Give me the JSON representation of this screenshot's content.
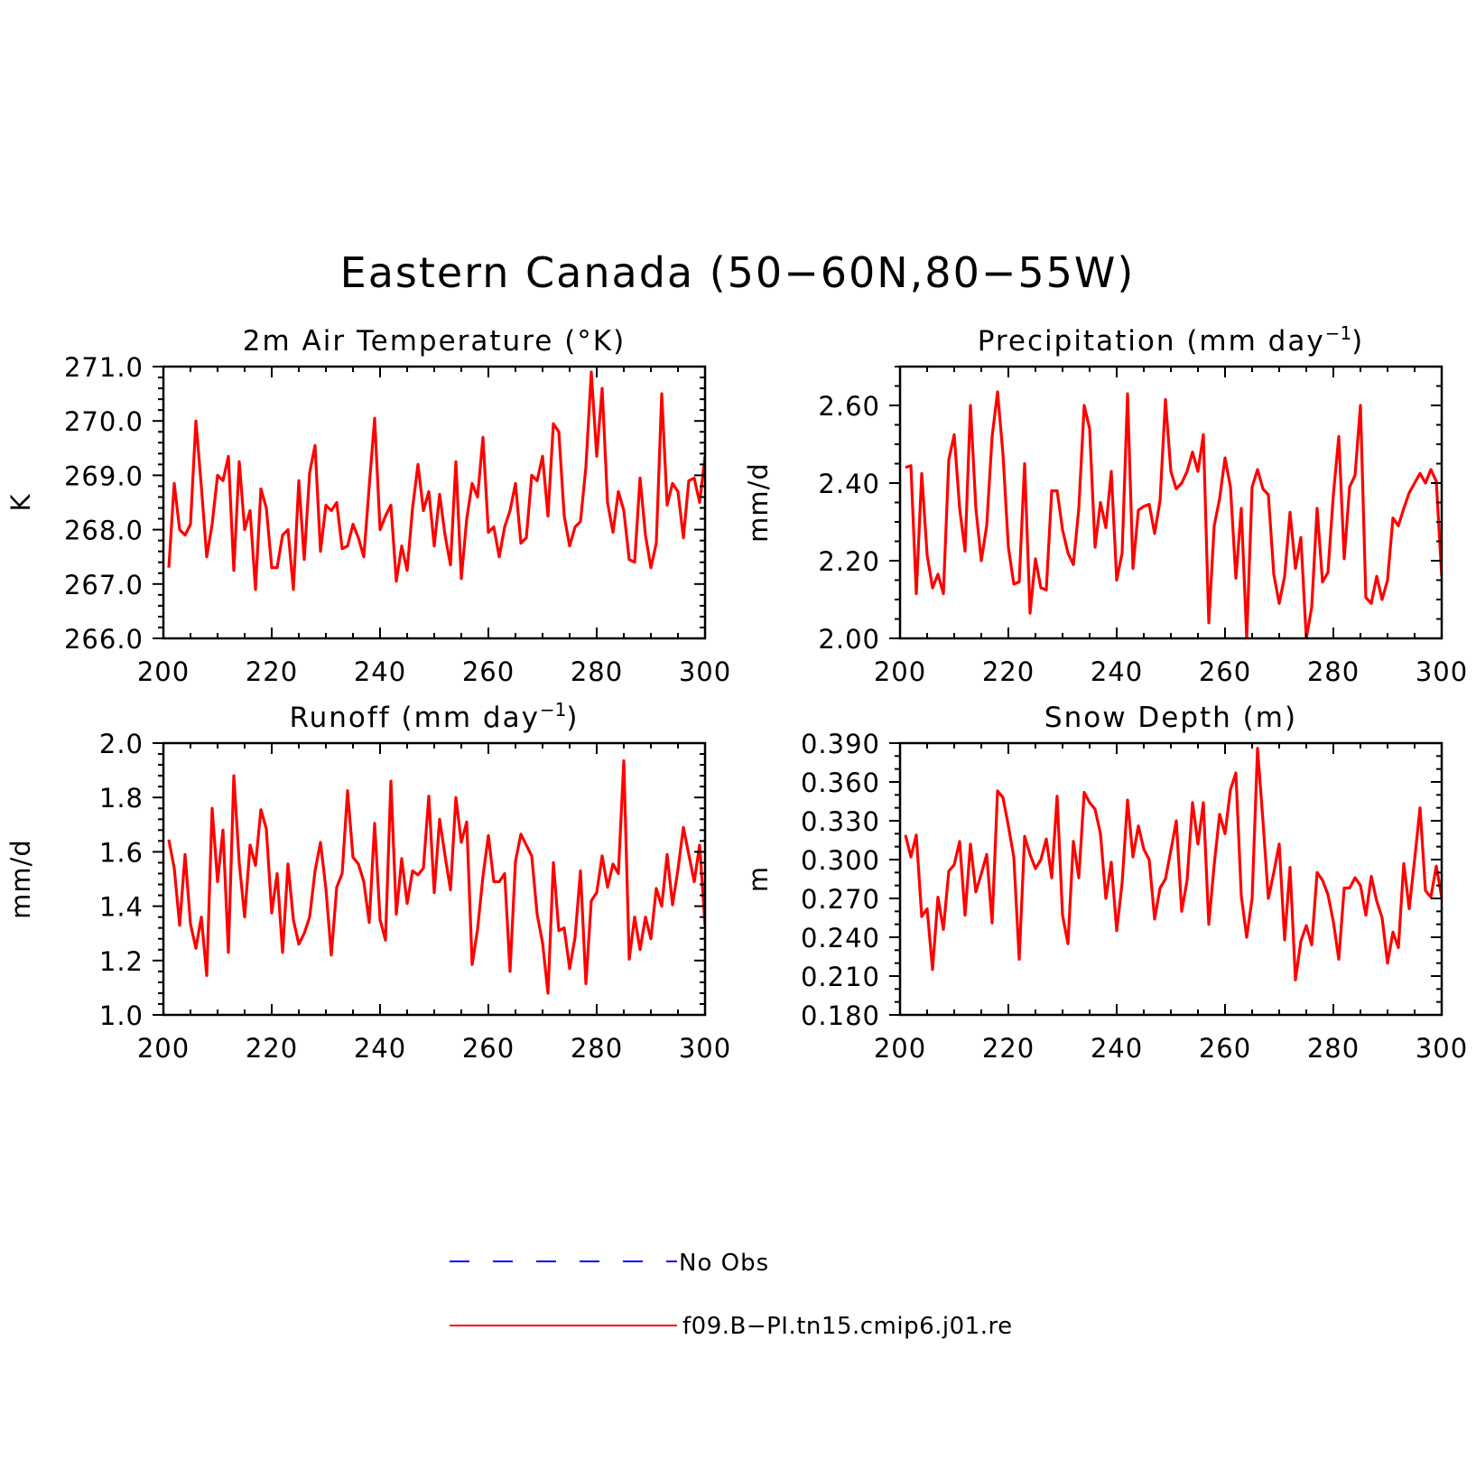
{
  "title": "Eastern Canada (50−60N,80−55W)",
  "colors": {
    "model": "#ff0000",
    "obs": "#0000ff",
    "axis": "#000000"
  },
  "legend": {
    "placement": "bottom-center",
    "entries": [
      {
        "label": "No Obs",
        "style": "dashed",
        "color": "#0000ff"
      },
      {
        "label": "f09.B−PI.tn15.cmip6.j01.re",
        "style": "solid",
        "color": "#ff0000"
      }
    ]
  },
  "chart_data": [
    {
      "type": "line",
      "title": "2m Air Temperature (°K)",
      "title_main": "2m Air Temperature (°K)",
      "title_sup": "",
      "title_tail": "",
      "xlabel": "",
      "ylabel": "K",
      "xlim": [
        200,
        300
      ],
      "ylim": [
        266.0,
        271.0
      ],
      "xticks": [
        "200",
        "220",
        "240",
        "260",
        "280",
        "300"
      ],
      "yticks": [
        "266.0",
        "267.0",
        "268.0",
        "269.0",
        "270.0",
        "271.0"
      ],
      "grid": false,
      "x_start": 201,
      "series": [
        {
          "name": "f09.B−PI.tn15.cmip6.j01.re",
          "values": [
            267.3,
            268.85,
            268.0,
            267.9,
            268.1,
            270.0,
            268.8,
            267.5,
            268.1,
            269.0,
            268.9,
            269.35,
            267.25,
            269.25,
            268.0,
            268.35,
            266.9,
            268.75,
            268.4,
            267.3,
            267.3,
            267.9,
            268.0,
            266.9,
            268.9,
            267.45,
            269.05,
            269.55,
            267.6,
            268.45,
            268.35,
            268.5,
            267.65,
            267.7,
            268.1,
            267.85,
            267.5,
            268.8,
            270.05,
            268.0,
            268.25,
            268.45,
            267.05,
            267.7,
            267.25,
            268.4,
            269.2,
            268.35,
            268.7,
            267.7,
            268.65,
            267.9,
            267.35,
            269.25,
            267.1,
            268.2,
            268.85,
            268.6,
            269.7,
            267.95,
            268.05,
            267.5,
            268.05,
            268.35,
            268.85,
            267.75,
            267.85,
            269.0,
            268.9,
            269.35,
            268.25,
            269.95,
            269.8,
            268.25,
            267.7,
            268.05,
            268.15,
            269.15,
            270.9,
            269.35,
            270.6,
            268.5,
            267.95,
            268.7,
            268.35,
            267.45,
            267.4,
            268.95,
            267.9,
            267.3,
            267.75,
            270.5,
            268.45,
            268.85,
            268.7,
            267.85,
            268.9,
            268.95,
            268.5,
            269.35
          ]
        }
      ]
    },
    {
      "type": "line",
      "title": "Precipitation (mm day⁻¹)",
      "title_main": "Precipitation (mm day",
      "title_sup": "−1",
      "title_tail": ")",
      "xlabel": "",
      "ylabel": "mm/d",
      "xlim": [
        200,
        300
      ],
      "ylim": [
        2.0,
        2.7
      ],
      "xticks": [
        "200",
        "220",
        "240",
        "260",
        "280",
        "300"
      ],
      "yticks": [
        "2.00",
        "2.20",
        "2.40",
        "2.60"
      ],
      "grid": false,
      "x_start": 201,
      "series": [
        {
          "name": "f09.B−PI.tn15.cmip6.j01.re",
          "values": [
            2.44,
            2.445,
            2.115,
            2.425,
            2.215,
            2.13,
            2.165,
            2.115,
            2.46,
            2.525,
            2.335,
            2.225,
            2.6,
            2.335,
            2.2,
            2.29,
            2.52,
            2.635,
            2.475,
            2.235,
            2.14,
            2.145,
            2.45,
            2.065,
            2.205,
            2.13,
            2.125,
            2.38,
            2.38,
            2.28,
            2.22,
            2.19,
            2.335,
            2.6,
            2.54,
            2.235,
            2.35,
            2.285,
            2.43,
            2.15,
            2.22,
            2.63,
            2.18,
            2.33,
            2.34,
            2.345,
            2.27,
            2.355,
            2.615,
            2.43,
            2.385,
            2.4,
            2.43,
            2.48,
            2.43,
            2.525,
            2.04,
            2.29,
            2.36,
            2.465,
            2.39,
            2.155,
            2.335,
            2.0,
            2.39,
            2.435,
            2.385,
            2.37,
            2.165,
            2.09,
            2.16,
            2.325,
            2.18,
            2.26,
            2.0,
            2.08,
            2.335,
            2.145,
            2.17,
            2.37,
            2.52,
            2.205,
            2.39,
            2.42,
            2.6,
            2.105,
            2.09,
            2.16,
            2.1,
            2.15,
            2.31,
            2.29,
            2.335,
            2.375,
            2.4,
            2.425,
            2.4,
            2.435,
            2.405,
            2.16
          ]
        }
      ]
    },
    {
      "type": "line",
      "title": "Runoff (mm day⁻¹)",
      "title_main": "Runoff (mm day",
      "title_sup": "−1",
      "title_tail": ")",
      "xlabel": "",
      "ylabel": "mm/d",
      "xlim": [
        200,
        300
      ],
      "ylim": [
        1.0,
        2.0
      ],
      "xticks": [
        "200",
        "220",
        "240",
        "260",
        "280",
        "300"
      ],
      "yticks": [
        "1.0",
        "1.2",
        "1.4",
        "1.6",
        "1.8",
        "2.0"
      ],
      "grid": false,
      "x_start": 201,
      "series": [
        {
          "name": "f09.B−PI.tn15.cmip6.j01.re",
          "values": [
            1.645,
            1.54,
            1.33,
            1.59,
            1.335,
            1.245,
            1.36,
            1.145,
            1.76,
            1.49,
            1.68,
            1.23,
            1.88,
            1.56,
            1.36,
            1.625,
            1.55,
            1.755,
            1.685,
            1.375,
            1.52,
            1.23,
            1.555,
            1.35,
            1.26,
            1.3,
            1.36,
            1.53,
            1.635,
            1.465,
            1.22,
            1.47,
            1.52,
            1.825,
            1.58,
            1.555,
            1.49,
            1.34,
            1.705,
            1.35,
            1.275,
            1.86,
            1.37,
            1.575,
            1.41,
            1.53,
            1.515,
            1.54,
            1.805,
            1.45,
            1.72,
            1.585,
            1.46,
            1.8,
            1.635,
            1.71,
            1.185,
            1.315,
            1.51,
            1.66,
            1.49,
            1.49,
            1.52,
            1.16,
            1.565,
            1.665,
            1.625,
            1.585,
            1.37,
            1.265,
            1.08,
            1.56,
            1.31,
            1.32,
            1.17,
            1.285,
            1.53,
            1.115,
            1.42,
            1.45,
            1.585,
            1.47,
            1.555,
            1.52,
            1.935,
            1.205,
            1.36,
            1.24,
            1.36,
            1.28,
            1.465,
            1.4,
            1.59,
            1.405,
            1.535,
            1.69,
            1.59,
            1.49,
            1.625,
            1.33
          ]
        }
      ]
    },
    {
      "type": "line",
      "title": "Snow Depth (m)",
      "title_main": "Snow Depth (m)",
      "title_sup": "",
      "title_tail": "",
      "xlabel": "",
      "ylabel": "m",
      "xlim": [
        200,
        300
      ],
      "ylim": [
        0.18,
        0.39
      ],
      "xticks": [
        "200",
        "220",
        "240",
        "260",
        "280",
        "300"
      ],
      "yticks": [
        "0.180",
        "0.210",
        "0.240",
        "0.270",
        "0.300",
        "0.330",
        "0.360",
        "0.390"
      ],
      "grid": false,
      "x_start": 201,
      "series": [
        {
          "name": "f09.B−PI.tn15.cmip6.j01.re",
          "values": [
            0.319,
            0.302,
            0.319,
            0.256,
            0.262,
            0.215,
            0.271,
            0.246,
            0.291,
            0.296,
            0.314,
            0.257,
            0.312,
            0.275,
            0.289,
            0.304,
            0.251,
            0.353,
            0.348,
            0.326,
            0.302,
            0.223,
            0.318,
            0.304,
            0.293,
            0.3,
            0.316,
            0.286,
            0.349,
            0.257,
            0.235,
            0.314,
            0.286,
            0.352,
            0.344,
            0.339,
            0.32,
            0.27,
            0.298,
            0.245,
            0.282,
            0.346,
            0.302,
            0.326,
            0.308,
            0.3,
            0.254,
            0.278,
            0.285,
            0.307,
            0.33,
            0.26,
            0.284,
            0.344,
            0.312,
            0.344,
            0.25,
            0.296,
            0.335,
            0.32,
            0.354,
            0.367,
            0.272,
            0.24,
            0.27,
            0.386,
            0.33,
            0.27,
            0.29,
            0.312,
            0.238,
            0.294,
            0.207,
            0.237,
            0.249,
            0.234,
            0.29,
            0.284,
            0.273,
            0.252,
            0.223,
            0.278,
            0.278,
            0.286,
            0.28,
            0.257,
            0.287,
            0.268,
            0.255,
            0.22,
            0.244,
            0.232,
            0.297,
            0.262,
            0.3,
            0.34,
            0.276,
            0.271,
            0.295,
            0.271
          ]
        }
      ]
    }
  ]
}
